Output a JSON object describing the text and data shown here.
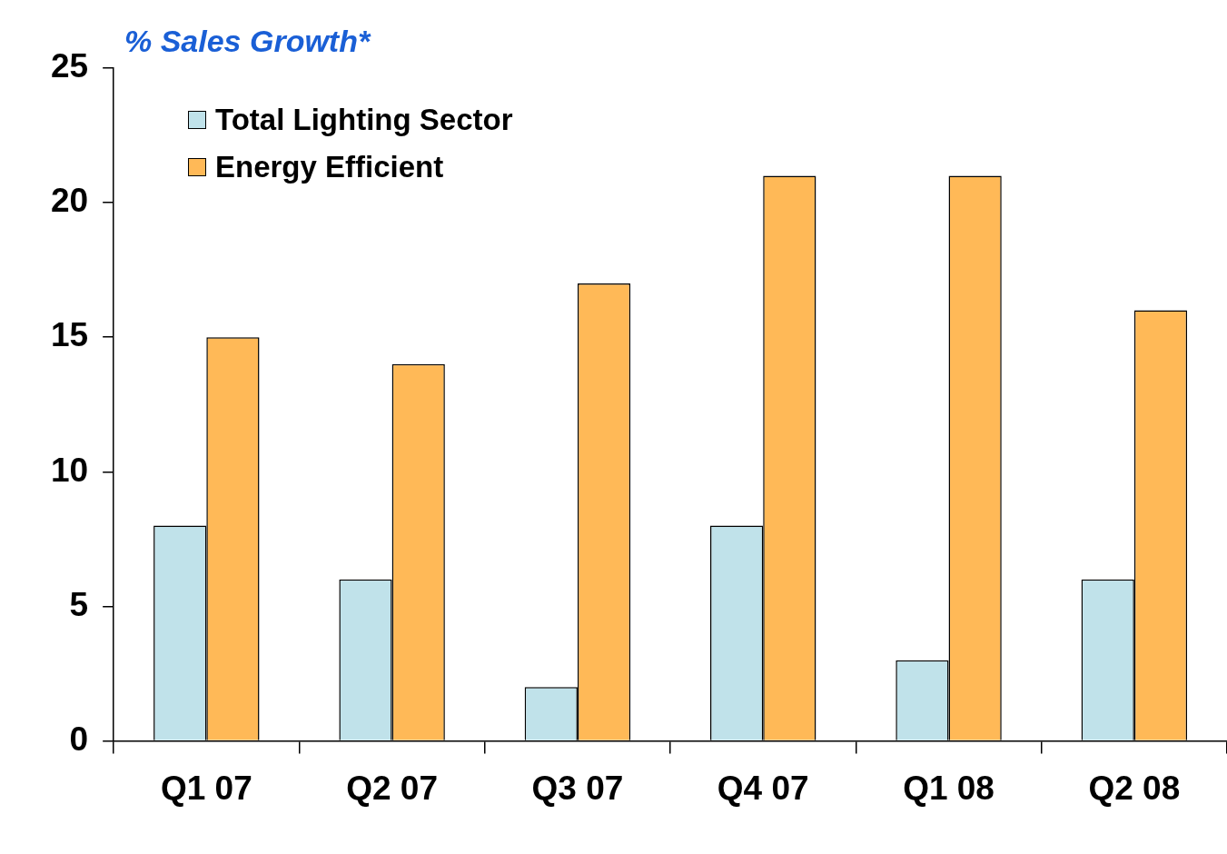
{
  "chart_data": {
    "type": "bar",
    "title": "% Sales Growth*",
    "categories": [
      "Q1 07",
      "Q2 07",
      "Q3 07",
      "Q4 07",
      "Q1 08",
      "Q2 08"
    ],
    "series": [
      {
        "name": "Total Lighting Sector",
        "color": "#c0e2ea",
        "values": [
          8,
          6,
          2,
          8,
          3,
          6
        ]
      },
      {
        "name": "Energy Efficient",
        "color": "#ffb957",
        "values": [
          15,
          14,
          17,
          21,
          21,
          16
        ]
      }
    ],
    "ylim": [
      0,
      25
    ],
    "yticks": [
      0,
      5,
      10,
      15,
      20,
      25
    ],
    "grid": false,
    "legend": "top left"
  }
}
